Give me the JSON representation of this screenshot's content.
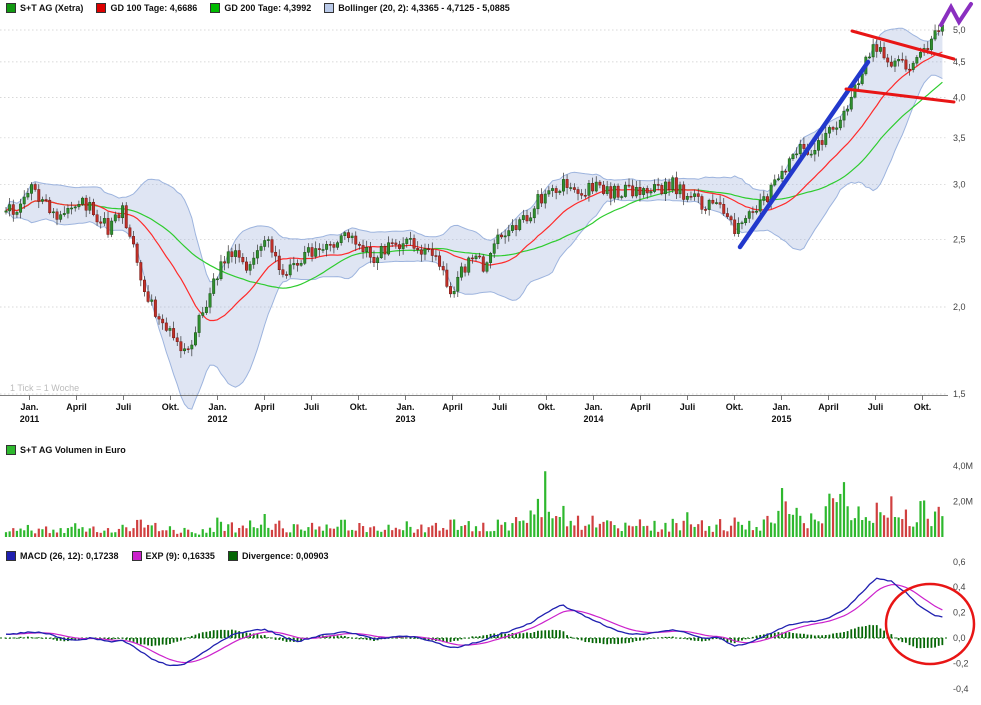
{
  "chart_data": [
    {
      "type": "candlestick",
      "name": "price-panel",
      "title": "S+T AG (Xetra)",
      "scale": "log",
      "ylim": [
        1.5,
        5.0
      ],
      "weeks_total": 258,
      "footnote": "1 Tick = 1 Woche",
      "legend": [
        {
          "label": "S+T AG (Xetra)",
          "color": "#119911"
        },
        {
          "label": "GD 100 Tage: 4,6686",
          "color": "#dd0000"
        },
        {
          "label": "GD 200 Tage: 4,3992",
          "color": "#00bb00"
        },
        {
          "label": "Bollinger (20, 2): 4,3365 - 4,7125 - 5,0885",
          "color": "#b9c9e8"
        }
      ],
      "y_ticks": [
        {
          "v": 5.0,
          "label": "5,0"
        },
        {
          "v": 4.5,
          "label": "4,5"
        },
        {
          "v": 4.0,
          "label": "4,0"
        },
        {
          "v": 3.5,
          "label": "3,5"
        },
        {
          "v": 3.0,
          "label": "3,0"
        },
        {
          "v": 2.5,
          "label": "2,5"
        },
        {
          "v": 2.0,
          "label": "2,0"
        },
        {
          "v": 1.5,
          "label": "1,5"
        }
      ],
      "x_ticks": [
        {
          "m": 1,
          "label": "Jan.",
          "year": "2011"
        },
        {
          "m": 4,
          "label": "April"
        },
        {
          "m": 7,
          "label": "Juli"
        },
        {
          "m": 10,
          "label": "Okt."
        },
        {
          "m": 13,
          "label": "Jan.",
          "year": "2012"
        },
        {
          "m": 16,
          "label": "April"
        },
        {
          "m": 19,
          "label": "Juli"
        },
        {
          "m": 22,
          "label": "Okt."
        },
        {
          "m": 25,
          "label": "Jan.",
          "year": "2013"
        },
        {
          "m": 28,
          "label": "April"
        },
        {
          "m": 31,
          "label": "Juli"
        },
        {
          "m": 34,
          "label": "Okt."
        },
        {
          "m": 37,
          "label": "Jan.",
          "year": "2014"
        },
        {
          "m": 40,
          "label": "April"
        },
        {
          "m": 43,
          "label": "Juli"
        },
        {
          "m": 46,
          "label": "Okt."
        },
        {
          "m": 49,
          "label": "Jan.",
          "year": "2015"
        },
        {
          "m": 52,
          "label": "April"
        },
        {
          "m": 55,
          "label": "Juli"
        },
        {
          "m": 58,
          "label": "Okt."
        }
      ],
      "monthly_close": [
        2.75,
        2.95,
        2.8,
        2.7,
        2.85,
        2.75,
        2.6,
        2.75,
        2.25,
        1.95,
        1.85,
        1.7,
        1.95,
        2.25,
        2.4,
        2.3,
        2.55,
        2.25,
        2.3,
        2.4,
        2.45,
        2.55,
        2.45,
        2.35,
        2.45,
        2.5,
        2.4,
        2.35,
        2.1,
        2.35,
        2.3,
        2.5,
        2.6,
        2.75,
        2.95,
        3.0,
        2.9,
        3.0,
        2.9,
        2.95,
        2.9,
        2.95,
        3.0,
        2.9,
        2.8,
        2.85,
        2.55,
        2.7,
        2.85,
        3.1,
        3.35,
        3.4,
        3.55,
        3.8,
        4.3,
        4.75,
        4.5,
        4.4,
        4.55,
        5.05
      ],
      "indicators": {
        "gd100_weeks": 20,
        "gd200_weeks": 40,
        "bollinger_period": 20,
        "bollinger_sigma": 2
      },
      "colors": {
        "up": "#2f8f2f",
        "up_stroke": "#14510f",
        "down": "#c03028",
        "down_stroke": "#701410",
        "gd100": "#ff2a2a",
        "gd200": "#2ecc2e",
        "band_fill": "rgba(148,170,216,0.30)",
        "band_edge": "#9db4de"
      },
      "annotations": [
        {
          "name": "blue-trendline",
          "shape": "line",
          "color": "#2238cc",
          "width": 4.5,
          "px": [
            [
              740,
              247
            ],
            [
              868,
              62
            ]
          ]
        },
        {
          "name": "red-resistance-line",
          "shape": "line",
          "color": "#e81515",
          "width": 3,
          "px": [
            [
              852,
              31
            ],
            [
              954,
              59
            ]
          ]
        },
        {
          "name": "red-support-line",
          "shape": "line",
          "color": "#e81515",
          "width": 3,
          "px": [
            [
              846,
              89
            ],
            [
              954,
              102
            ]
          ]
        },
        {
          "name": "purple-breakout-zigzag",
          "shape": "polyline",
          "color": "#8a2fc0",
          "width": 4,
          "px": [
            [
              941,
              25
            ],
            [
              951,
              7
            ],
            [
              959,
              22
            ],
            [
              971,
              4
            ]
          ]
        }
      ]
    },
    {
      "type": "bar",
      "name": "volume-panel",
      "legend": [
        {
          "label": "S+T AG Volumen in Euro",
          "color": "#2eb82e"
        }
      ],
      "ylim": [
        0,
        4.0
      ],
      "y_ticks": [
        {
          "v": 4.0,
          "label": "4,0M"
        },
        {
          "v": 2.0,
          "label": "2,0M"
        }
      ],
      "monthly_volume_peak_meur": [
        0.5,
        0.7,
        0.6,
        0.5,
        0.8,
        0.6,
        0.5,
        0.7,
        1.0,
        0.8,
        0.6,
        0.5,
        0.4,
        1.1,
        0.8,
        0.9,
        1.3,
        0.9,
        0.7,
        0.8,
        0.7,
        1.0,
        0.8,
        0.6,
        0.7,
        0.9,
        0.7,
        0.8,
        1.0,
        0.9,
        0.8,
        1.0,
        1.1,
        1.5,
        3.9,
        1.8,
        1.2,
        1.2,
        0.9,
        0.8,
        1.0,
        0.9,
        1.0,
        1.4,
        0.9,
        1.0,
        1.1,
        0.9,
        1.0,
        2.8,
        1.6,
        1.3,
        2.4,
        3.1,
        1.6,
        1.9,
        2.3,
        1.5,
        2.1,
        1.7
      ],
      "colors": {
        "up": "#2eb82e",
        "down": "#d04040"
      }
    },
    {
      "type": "line",
      "name": "macd-panel",
      "legend": [
        {
          "label": "MACD (26, 12): 0,17238",
          "color": "#2020b0"
        },
        {
          "label": "EXP (9): 0,16335",
          "color": "#cc22cc"
        },
        {
          "label": "Divergence: 0,00903",
          "color": "#056605"
        }
      ],
      "ylim": [
        -0.4,
        0.6
      ],
      "y_ticks": [
        {
          "v": 0.6,
          "label": "0,6"
        },
        {
          "v": 0.4,
          "label": "0,4"
        },
        {
          "v": 0.2,
          "label": "0,2"
        },
        {
          "v": 0.0,
          "label": "0,0"
        },
        {
          "v": -0.2,
          "label": "-0,2"
        },
        {
          "v": -0.4,
          "label": "-0,4"
        }
      ],
      "params": {
        "fast": 12,
        "slow": 26,
        "signal": 9
      },
      "monthly_macd": [
        0.03,
        0.05,
        0.04,
        0.0,
        -0.02,
        0.0,
        -0.03,
        -0.02,
        -0.1,
        -0.18,
        -0.22,
        -0.2,
        -0.12,
        -0.04,
        0.03,
        0.05,
        0.07,
        0.02,
        -0.03,
        0.0,
        0.03,
        0.05,
        0.03,
        -0.01,
        0.0,
        0.02,
        0.0,
        -0.04,
        -0.08,
        -0.05,
        -0.02,
        0.03,
        0.07,
        0.12,
        0.2,
        0.26,
        0.2,
        0.14,
        0.08,
        0.04,
        0.03,
        0.04,
        0.06,
        0.04,
        0.0,
        0.0,
        -0.06,
        -0.04,
        0.02,
        0.08,
        0.12,
        0.13,
        0.16,
        0.22,
        0.34,
        0.47,
        0.45,
        0.35,
        0.23,
        0.17
      ],
      "colors": {
        "macd": "#2020b0",
        "signal": "#cc22cc",
        "hist": "#056605",
        "zero": "#056605"
      },
      "annotations": [
        {
          "name": "red-highlight-ellipse",
          "shape": "ellipse",
          "color": "#e81515",
          "width": 2.5,
          "cx": 930,
          "cy": 624,
          "rx": 44,
          "ry": 40
        }
      ]
    }
  ]
}
